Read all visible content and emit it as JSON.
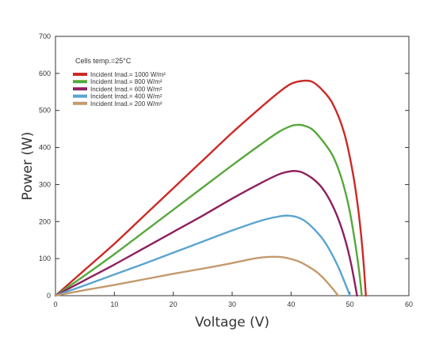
{
  "chart_data": {
    "type": "line",
    "xlabel": "Voltage (V)",
    "ylabel": "Power (W)",
    "xlim": [
      0,
      60
    ],
    "ylim": [
      0,
      700
    ],
    "x_ticks": [
      0,
      10,
      20,
      30,
      40,
      50,
      60
    ],
    "y_ticks": [
      0,
      100,
      200,
      300,
      400,
      500,
      600,
      700
    ],
    "grid": false,
    "legend_position": "top-left",
    "annotation": "Cells temp.=25°C",
    "series": [
      {
        "name": "Incident Irrad.= 1000 W/m²",
        "color": "#cc2a27",
        "points": [
          [
            0,
            0
          ],
          [
            5,
            70
          ],
          [
            10,
            140
          ],
          [
            15,
            215
          ],
          [
            20,
            290
          ],
          [
            25,
            365
          ],
          [
            30,
            440
          ],
          [
            35,
            510
          ],
          [
            38,
            550
          ],
          [
            40,
            572
          ],
          [
            42,
            580
          ],
          [
            43.5,
            578
          ],
          [
            45,
            560
          ],
          [
            47,
            520
          ],
          [
            49,
            440
          ],
          [
            50.5,
            330
          ],
          [
            51.5,
            220
          ],
          [
            52.2,
            110
          ],
          [
            52.7,
            0
          ]
        ]
      },
      {
        "name": "Incident Irrad.= 800 W/m²",
        "color": "#56a83b",
        "points": [
          [
            0,
            0
          ],
          [
            5,
            55
          ],
          [
            10,
            112
          ],
          [
            15,
            172
          ],
          [
            20,
            232
          ],
          [
            25,
            292
          ],
          [
            30,
            352
          ],
          [
            35,
            410
          ],
          [
            38,
            443
          ],
          [
            40,
            458
          ],
          [
            41,
            461
          ],
          [
            42,
            460
          ],
          [
            43.5,
            450
          ],
          [
            45,
            425
          ],
          [
            47,
            380
          ],
          [
            48.5,
            320
          ],
          [
            49.8,
            240
          ],
          [
            50.8,
            150
          ],
          [
            51.6,
            60
          ],
          [
            52,
            0
          ]
        ]
      },
      {
        "name": "Incident Irrad.= 600 W/m²",
        "color": "#8e1f5d",
        "points": [
          [
            0,
            0
          ],
          [
            5,
            42
          ],
          [
            10,
            84
          ],
          [
            15,
            128
          ],
          [
            20,
            172
          ],
          [
            25,
            216
          ],
          [
            30,
            262
          ],
          [
            35,
            305
          ],
          [
            38,
            328
          ],
          [
            40,
            336
          ],
          [
            41,
            336
          ],
          [
            42,
            332
          ],
          [
            43.5,
            318
          ],
          [
            45,
            296
          ],
          [
            46.5,
            260
          ],
          [
            48,
            208
          ],
          [
            49.2,
            150
          ],
          [
            50.2,
            85
          ],
          [
            51.2,
            0
          ]
        ]
      },
      {
        "name": "Incident Irrad.= 400 W/m²",
        "color": "#5aa4cf",
        "points": [
          [
            0,
            0
          ],
          [
            5,
            28
          ],
          [
            10,
            57
          ],
          [
            15,
            86
          ],
          [
            20,
            116
          ],
          [
            25,
            146
          ],
          [
            30,
            176
          ],
          [
            35,
            203
          ],
          [
            38,
            214
          ],
          [
            39.5,
            216
          ],
          [
            41,
            212
          ],
          [
            42.5,
            200
          ],
          [
            44,
            178
          ],
          [
            45.5,
            150
          ],
          [
            46.8,
            116
          ],
          [
            48,
            78
          ],
          [
            49,
            40
          ],
          [
            50,
            0
          ]
        ]
      },
      {
        "name": "Incident Irrad.= 200 W/m²",
        "color": "#c49a6c",
        "points": [
          [
            0,
            0
          ],
          [
            5,
            15
          ],
          [
            10,
            29
          ],
          [
            15,
            44
          ],
          [
            20,
            59
          ],
          [
            25,
            73
          ],
          [
            30,
            88
          ],
          [
            33,
            98
          ],
          [
            35,
            103
          ],
          [
            37,
            105
          ],
          [
            38.5,
            104
          ],
          [
            40,
            99
          ],
          [
            41.5,
            91
          ],
          [
            43,
            78
          ],
          [
            44.5,
            62
          ],
          [
            45.8,
            42
          ],
          [
            47,
            20
          ],
          [
            48,
            0
          ]
        ]
      }
    ]
  }
}
